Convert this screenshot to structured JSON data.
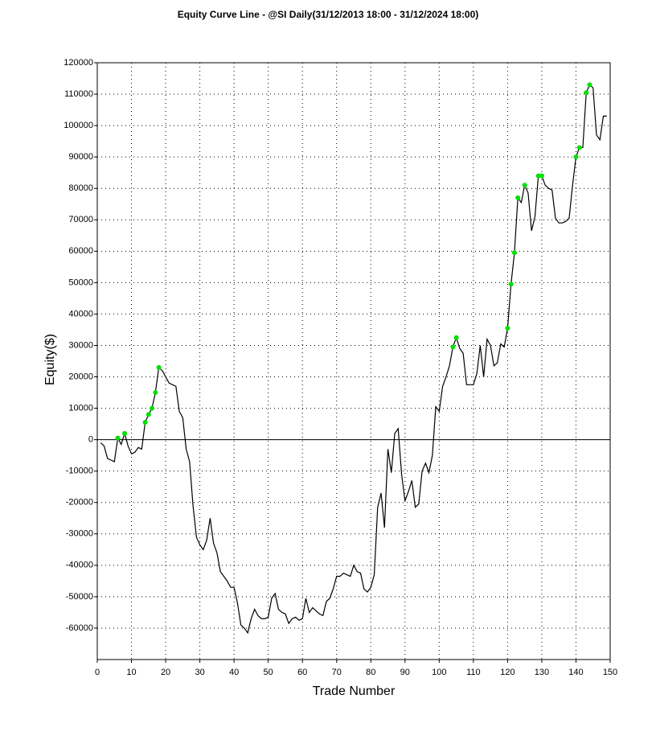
{
  "chart_data": {
    "type": "line",
    "title": "Equity Curve Line - @SI Daily(31/12/2013 18:00 - 31/12/2024 18:00)",
    "xlabel": "Trade Number",
    "ylabel": "Equity($)",
    "x": [
      1,
      2,
      3,
      4,
      5,
      6,
      7,
      8,
      9,
      10,
      11,
      12,
      13,
      14,
      15,
      16,
      17,
      18,
      19,
      20,
      21,
      22,
      23,
      24,
      25,
      26,
      27,
      28,
      29,
      30,
      31,
      32,
      33,
      34,
      35,
      36,
      37,
      38,
      39,
      40,
      41,
      42,
      43,
      44,
      45,
      46,
      47,
      48,
      49,
      50,
      51,
      52,
      53,
      54,
      55,
      56,
      57,
      58,
      59,
      60,
      61,
      62,
      63,
      64,
      65,
      66,
      67,
      68,
      69,
      70,
      71,
      72,
      73,
      74,
      75,
      76,
      77,
      78,
      79,
      80,
      81,
      82,
      83,
      84,
      85,
      86,
      87,
      88,
      89,
      90,
      91,
      92,
      93,
      94,
      95,
      96,
      97,
      98,
      99,
      100,
      101,
      102,
      103,
      104,
      105,
      106,
      107,
      108,
      109,
      110,
      111,
      112,
      113,
      114,
      115,
      116,
      117,
      118,
      119,
      120,
      121,
      122,
      123,
      124,
      125,
      126,
      127,
      128,
      129,
      130,
      131,
      132,
      133,
      134,
      135,
      136,
      137,
      138,
      139,
      140,
      141,
      142,
      143,
      144,
      145,
      146,
      147,
      148,
      149
    ],
    "series": [
      {
        "color": "#000000",
        "values": [
          -1000,
          -2000,
          -6000,
          -6500,
          -7000,
          500,
          -1500,
          2000,
          -2000,
          -4500,
          -4000,
          -2500,
          -3000,
          5500,
          8000,
          10000,
          15000,
          23000,
          22000,
          20000,
          18000,
          17500,
          17000,
          9000,
          7000,
          -3000,
          -7000,
          -21000,
          -31000,
          -33500,
          -35000,
          -32000,
          -25000,
          -33000,
          -36000,
          -42000,
          -43500,
          -45000,
          -47000,
          -47000,
          -52000,
          -59000,
          -60000,
          -61500,
          -57000,
          -54000,
          -56000,
          -57000,
          -57000,
          -56500,
          -50500,
          -49000,
          -54000,
          -55000,
          -55500,
          -58500,
          -57000,
          -56500,
          -57500,
          -57000,
          -50500,
          -55000,
          -53500,
          -54500,
          -55500,
          -56000,
          -51500,
          -50500,
          -47500,
          -43500,
          -43500,
          -42500,
          -43000,
          -43500,
          -40000,
          -42000,
          -42500,
          -47500,
          -48500,
          -47000,
          -43000,
          -21500,
          -17000,
          -28000,
          -3000,
          -10500,
          2000,
          3500,
          -11000,
          -19500,
          -16500,
          -13000,
          -21500,
          -20500,
          -10000,
          -7500,
          -10500,
          -5000,
          10500,
          9000,
          17000,
          20000,
          23500,
          29500,
          32500,
          29000,
          27500,
          17500,
          17500,
          17500,
          21000,
          30000,
          20000,
          32000,
          30000,
          23500,
          24500,
          30500,
          29500,
          35500,
          49500,
          59500,
          77000,
          75500,
          81000,
          78500,
          66500,
          71000,
          84000,
          84000,
          81000,
          80000,
          79500,
          70500,
          69000,
          69000,
          69500,
          70500,
          81000,
          90000,
          93000,
          93000,
          110500,
          113000,
          112000,
          97000,
          95500,
          103000,
          103000
        ]
      },
      {
        "color": "#00e000",
        "marker": true,
        "values": [
          null,
          null,
          null,
          null,
          null,
          500,
          null,
          2000,
          null,
          null,
          null,
          null,
          null,
          5500,
          8000,
          10000,
          15000,
          23000,
          null,
          null,
          null,
          null,
          null,
          null,
          null,
          null,
          null,
          null,
          null,
          null,
          null,
          null,
          null,
          null,
          null,
          null,
          null,
          null,
          null,
          null,
          null,
          null,
          null,
          null,
          null,
          null,
          null,
          null,
          null,
          null,
          null,
          null,
          null,
          null,
          null,
          null,
          null,
          null,
          null,
          null,
          null,
          null,
          null,
          null,
          null,
          null,
          null,
          null,
          null,
          null,
          null,
          null,
          null,
          null,
          null,
          null,
          null,
          null,
          null,
          null,
          null,
          null,
          null,
          null,
          null,
          null,
          null,
          null,
          null,
          null,
          null,
          null,
          null,
          null,
          null,
          null,
          null,
          null,
          null,
          null,
          null,
          null,
          null,
          29500,
          32500,
          null,
          null,
          null,
          null,
          null,
          null,
          null,
          null,
          null,
          null,
          null,
          null,
          null,
          null,
          35500,
          49500,
          59500,
          77000,
          null,
          81000,
          null,
          null,
          null,
          84000,
          84000,
          null,
          null,
          null,
          null,
          null,
          null,
          null,
          null,
          null,
          90000,
          93000,
          null,
          110500,
          113000,
          null,
          null,
          null,
          null,
          null
        ]
      }
    ],
    "xlim": [
      0,
      150
    ],
    "xticks": [
      0,
      10,
      20,
      30,
      40,
      50,
      60,
      70,
      80,
      90,
      100,
      110,
      120,
      130,
      140,
      150
    ],
    "ylim": [
      -70000,
      120000
    ],
    "yticks": [
      -60000,
      -50000,
      -40000,
      -30000,
      -20000,
      -10000,
      0,
      10000,
      20000,
      30000,
      40000,
      50000,
      60000,
      70000,
      80000,
      90000,
      100000,
      110000,
      120000
    ],
    "grid": true
  }
}
